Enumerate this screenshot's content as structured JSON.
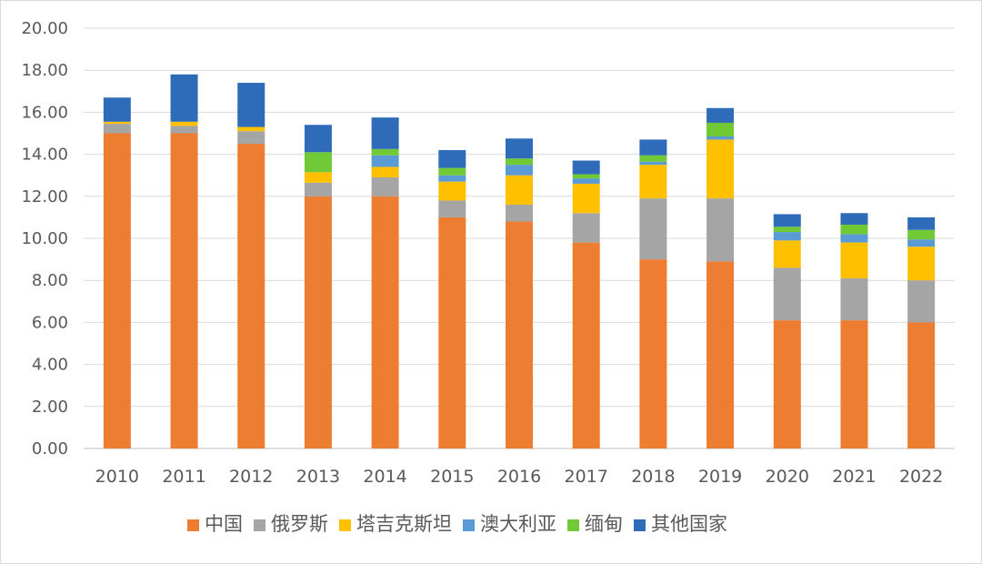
{
  "chart_data": {
    "type": "bar",
    "stacked": true,
    "categories": [
      "2010",
      "2011",
      "2012",
      "2013",
      "2014",
      "2015",
      "2016",
      "2017",
      "2018",
      "2019",
      "2020",
      "2021",
      "2022"
    ],
    "series": [
      {
        "name": "中国",
        "color": "#ED7D31",
        "values": [
          15.0,
          15.0,
          14.5,
          12.0,
          12.0,
          11.0,
          10.8,
          9.8,
          9.0,
          8.9,
          6.1,
          6.1,
          6.0
        ]
      },
      {
        "name": "俄罗斯",
        "color": "#A5A5A5",
        "values": [
          0.45,
          0.35,
          0.6,
          0.65,
          0.9,
          0.8,
          0.8,
          1.4,
          2.9,
          3.0,
          2.5,
          2.0,
          2.0
        ]
      },
      {
        "name": "塔吉克斯坦",
        "color": "#FFC000",
        "values": [
          0.1,
          0.2,
          0.2,
          0.5,
          0.5,
          0.9,
          1.4,
          1.4,
          1.6,
          2.8,
          1.3,
          1.7,
          1.6
        ]
      },
      {
        "name": "澳大利亚",
        "color": "#5B9BD5",
        "values": [
          0.0,
          0.0,
          0.0,
          0.0,
          0.55,
          0.3,
          0.5,
          0.25,
          0.15,
          0.15,
          0.4,
          0.4,
          0.35
        ]
      },
      {
        "name": "缅甸",
        "color": "#70C935",
        "values": [
          0.0,
          0.0,
          0.0,
          0.95,
          0.3,
          0.35,
          0.3,
          0.2,
          0.3,
          0.65,
          0.25,
          0.45,
          0.45
        ]
      },
      {
        "name": "其他国家",
        "color": "#2E6BB8",
        "values": [
          1.15,
          2.25,
          2.1,
          1.3,
          1.5,
          0.85,
          0.95,
          0.65,
          0.75,
          0.7,
          0.6,
          0.55,
          0.6
        ]
      }
    ],
    "ylim": [
      0,
      20
    ],
    "yticks": [
      "0.00",
      "2.00",
      "4.00",
      "6.00",
      "8.00",
      "10.00",
      "12.00",
      "14.00",
      "16.00",
      "18.00",
      "20.00"
    ],
    "grid": true,
    "legend_position": "bottom"
  }
}
